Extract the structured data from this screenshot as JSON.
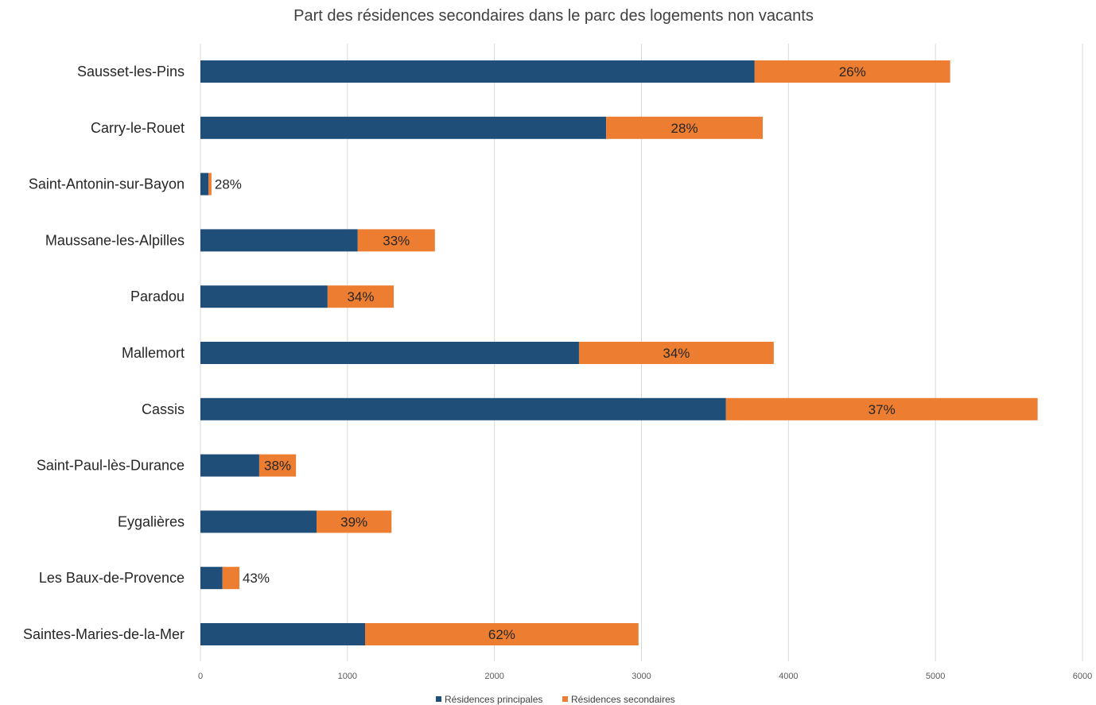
{
  "chart_data": {
    "type": "bar",
    "orientation": "horizontal",
    "stacked": true,
    "title": "Part des résidences secondaires dans le parc des logements non vacants",
    "categories": [
      "Sausset-les-Pins",
      "Carry-le-Rouet",
      "Saint-Antonin-sur-Bayon",
      "Maussane-les-Alpilles",
      "Paradou",
      "Mallemort",
      "Cassis",
      "Saint-Paul-lès-Durance",
      "Eygalières",
      "Les Baux-de-Provence",
      "Saintes-Maries-de-la-Mer"
    ],
    "series": [
      {
        "name": "Résidences principales",
        "color": "#1F4E79",
        "values": [
          3770,
          2760,
          55,
          1070,
          865,
          2575,
          3575,
          400,
          790,
          150,
          1120
        ]
      },
      {
        "name": "Résidences secondaires",
        "color": "#ED7D31",
        "values": [
          1330,
          1065,
          20,
          525,
          450,
          1325,
          2120,
          250,
          510,
          115,
          1860
        ]
      }
    ],
    "data_labels": [
      "26%",
      "28%",
      "28%",
      "33%",
      "34%",
      "34%",
      "37%",
      "38%",
      "39%",
      "43%",
      "62%"
    ],
    "xlim": [
      0,
      6000
    ],
    "xticks": [
      "0",
      "1000",
      "2000",
      "3000",
      "4000",
      "5000",
      "6000"
    ],
    "grid": true,
    "legend_position": "bottom"
  }
}
